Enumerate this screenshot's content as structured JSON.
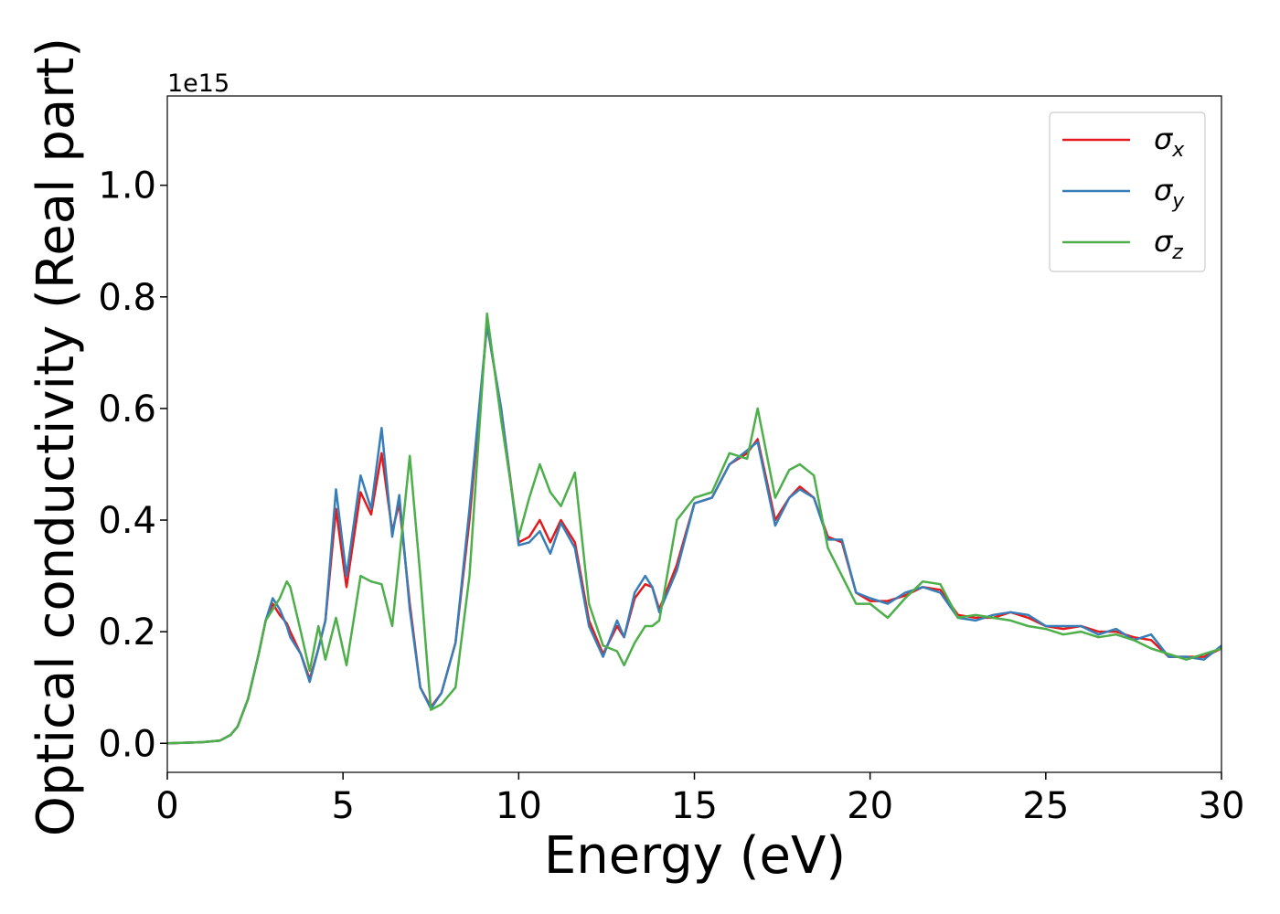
{
  "chart_data": {
    "type": "line",
    "x_label": "Energy (eV)",
    "y_label": "Optical conductivity (Real part)",
    "y_offset_label": "1e15",
    "x": [
      0,
      1,
      1.5,
      1.8,
      2,
      2.3,
      2.6,
      2.8,
      3,
      3.2,
      3.4,
      3.5,
      3.8,
      4.05,
      4.3,
      4.5,
      4.8,
      5.1,
      5.5,
      5.8,
      6.1,
      6.4,
      6.6,
      6.9,
      7.2,
      7.5,
      7.8,
      8.2,
      8.6,
      9.1,
      9.5,
      10,
      10.3,
      10.6,
      10.9,
      11.2,
      11.6,
      12,
      12.4,
      12.8,
      13,
      13.3,
      13.6,
      13.8,
      14,
      14.5,
      15,
      15.5,
      16,
      16.5,
      16.8,
      17.3,
      17.7,
      18,
      18.4,
      18.8,
      19.2,
      19.6,
      20,
      20.5,
      21,
      21.5,
      22,
      22.5,
      23,
      23.5,
      24,
      24.5,
      25,
      25.5,
      26,
      26.5,
      27,
      27.5,
      28,
      28.5,
      29,
      29.5,
      30
    ],
    "series": [
      {
        "name": "σx",
        "color": "#e41a1c",
        "values": [
          0,
          0.002,
          0.005,
          0.015,
          0.03,
          0.08,
          0.16,
          0.22,
          0.25,
          0.23,
          0.215,
          0.2,
          0.16,
          0.115,
          0.17,
          0.22,
          0.42,
          0.28,
          0.45,
          0.41,
          0.52,
          0.38,
          0.43,
          0.25,
          0.1,
          0.065,
          0.09,
          0.18,
          0.4,
          0.75,
          0.6,
          0.36,
          0.37,
          0.4,
          0.36,
          0.4,
          0.36,
          0.22,
          0.16,
          0.21,
          0.19,
          0.26,
          0.285,
          0.28,
          0.24,
          0.32,
          0.43,
          0.44,
          0.5,
          0.52,
          0.545,
          0.4,
          0.44,
          0.46,
          0.44,
          0.37,
          0.36,
          0.27,
          0.255,
          0.255,
          0.265,
          0.28,
          0.275,
          0.23,
          0.225,
          0.225,
          0.235,
          0.225,
          0.21,
          0.205,
          0.21,
          0.2,
          0.2,
          0.19,
          0.185,
          0.155,
          0.155,
          0.155,
          0.17
        ]
      },
      {
        "name": "σy",
        "color": "#377eb8",
        "values": [
          0,
          0.002,
          0.005,
          0.015,
          0.03,
          0.08,
          0.16,
          0.22,
          0.26,
          0.24,
          0.21,
          0.19,
          0.16,
          0.11,
          0.17,
          0.22,
          0.455,
          0.3,
          0.48,
          0.42,
          0.565,
          0.37,
          0.445,
          0.24,
          0.1,
          0.062,
          0.09,
          0.18,
          0.42,
          0.75,
          0.6,
          0.355,
          0.36,
          0.38,
          0.34,
          0.395,
          0.35,
          0.21,
          0.155,
          0.22,
          0.19,
          0.27,
          0.3,
          0.28,
          0.235,
          0.31,
          0.43,
          0.44,
          0.5,
          0.525,
          0.54,
          0.39,
          0.44,
          0.455,
          0.44,
          0.365,
          0.365,
          0.27,
          0.26,
          0.25,
          0.27,
          0.28,
          0.27,
          0.225,
          0.22,
          0.23,
          0.235,
          0.23,
          0.21,
          0.21,
          0.21,
          0.195,
          0.205,
          0.185,
          0.195,
          0.155,
          0.155,
          0.15,
          0.175
        ]
      },
      {
        "name": "σz",
        "color": "#4daf4a",
        "values": [
          0,
          0.002,
          0.005,
          0.015,
          0.03,
          0.08,
          0.16,
          0.22,
          0.24,
          0.26,
          0.29,
          0.28,
          0.2,
          0.13,
          0.21,
          0.15,
          0.225,
          0.14,
          0.3,
          0.29,
          0.285,
          0.21,
          0.33,
          0.515,
          0.3,
          0.06,
          0.07,
          0.1,
          0.3,
          0.77,
          0.58,
          0.37,
          0.44,
          0.5,
          0.45,
          0.425,
          0.485,
          0.25,
          0.175,
          0.165,
          0.14,
          0.18,
          0.21,
          0.21,
          0.22,
          0.4,
          0.44,
          0.45,
          0.52,
          0.51,
          0.6,
          0.44,
          0.49,
          0.5,
          0.48,
          0.35,
          0.3,
          0.25,
          0.25,
          0.225,
          0.26,
          0.29,
          0.285,
          0.225,
          0.23,
          0.225,
          0.22,
          0.21,
          0.205,
          0.195,
          0.2,
          0.19,
          0.195,
          0.185,
          0.17,
          0.16,
          0.15,
          0.16,
          0.17
        ]
      }
    ],
    "xlim": [
      0,
      30
    ],
    "xticks": [
      0,
      5,
      10,
      15,
      20,
      25,
      30
    ],
    "ylim": [
      -0.052,
      1.16
    ],
    "yticks": [
      {
        "value": 0,
        "label": "0.0"
      },
      0.2,
      0.4,
      0.6,
      0.8,
      {
        "value": 1,
        "label": "1.0"
      }
    ],
    "grid": false,
    "legend": "upper right"
  }
}
